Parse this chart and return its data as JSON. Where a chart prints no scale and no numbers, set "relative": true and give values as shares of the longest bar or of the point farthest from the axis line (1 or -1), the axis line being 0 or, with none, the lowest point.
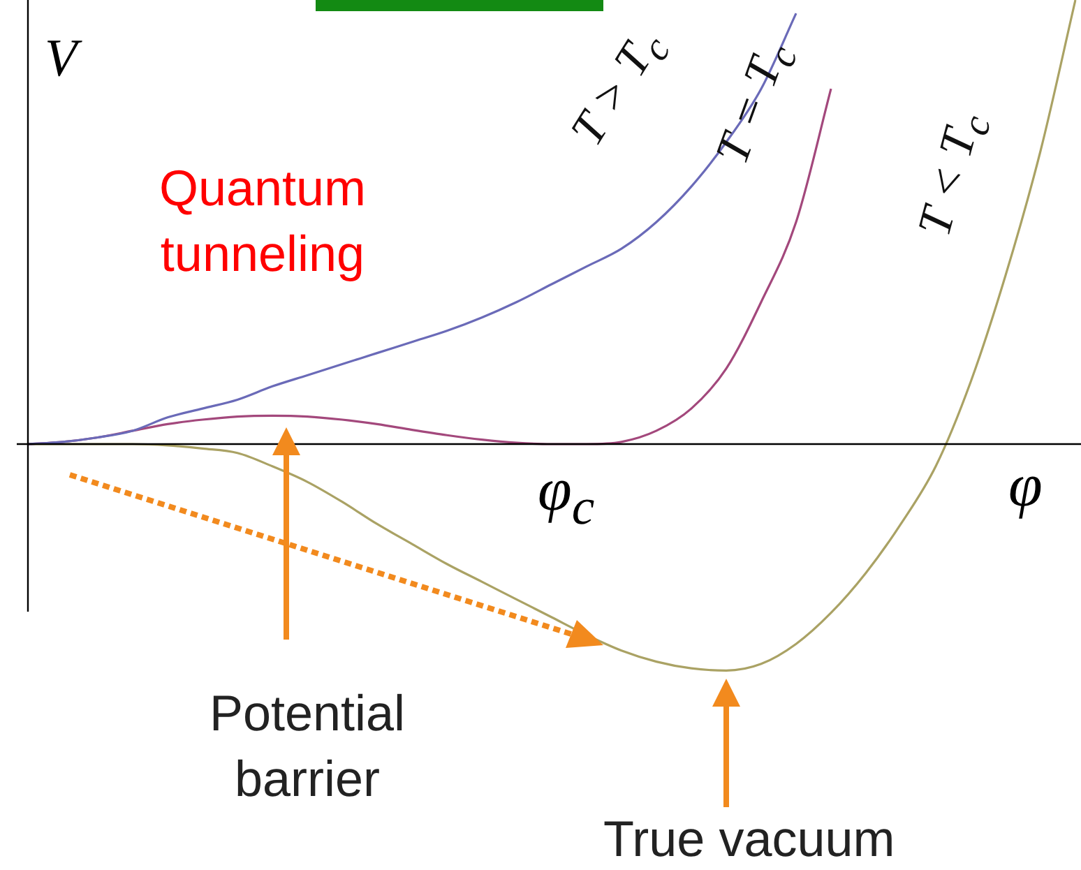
{
  "chart_data": {
    "type": "line",
    "relative": true,
    "xlabel": "φ",
    "ylabel": "V",
    "legend": false,
    "marker": "none",
    "categories": [
      null,
      null,
      null,
      null,
      null,
      null,
      null,
      null,
      null,
      null,
      null,
      null,
      null,
      null,
      null,
      null,
      null,
      null,
      null,
      null,
      null,
      null,
      null,
      null,
      null,
      null,
      null,
      null,
      null,
      null,
      null
    ],
    "series": [
      {
        "name": "T > T$_{c}$",
        "color": "#6a6ab8",
        "values": [
          0,
          0.005,
          0.015,
          0.03,
          0.06,
          0.08,
          0.1,
          0.13,
          0.155,
          0.18,
          0.205,
          0.23,
          0.255,
          0.285,
          0.32,
          0.36,
          0.4,
          0.44,
          0.5,
          0.58,
          0.68,
          0.8,
          0.97,
          null,
          null,
          null,
          null,
          null,
          null,
          null,
          null
        ]
      },
      {
        "name": "T = T$_{c}$",
        "color": "#a3487c",
        "values": [
          0,
          0.005,
          0.015,
          0.03,
          0.045,
          0.055,
          0.062,
          0.064,
          0.062,
          0.055,
          0.045,
          0.032,
          0.02,
          0.01,
          0.003,
          0,
          0,
          0.005,
          0.03,
          0.08,
          0.17,
          0.32,
          0.5,
          0.8,
          null,
          null,
          null,
          null,
          null,
          null,
          null
        ]
      },
      {
        "name": "T < T$_{c}$",
        "color": "#aaa264",
        "values": [
          0,
          0,
          0,
          0,
          -0.003,
          -0.01,
          -0.02,
          -0.05,
          -0.085,
          -0.13,
          -0.18,
          -0.225,
          -0.27,
          -0.31,
          -0.35,
          -0.39,
          -0.43,
          -0.465,
          -0.49,
          -0.505,
          -0.51,
          -0.495,
          -0.45,
          -0.38,
          -0.29,
          -0.18,
          -0.05,
          0.14,
          0.38,
          0.66,
          1
        ]
      }
    ],
    "annotations": [
      "φ$_{c}$",
      "Quantum tunneling",
      "Potential barrier",
      "True vacuum"
    ]
  }
}
